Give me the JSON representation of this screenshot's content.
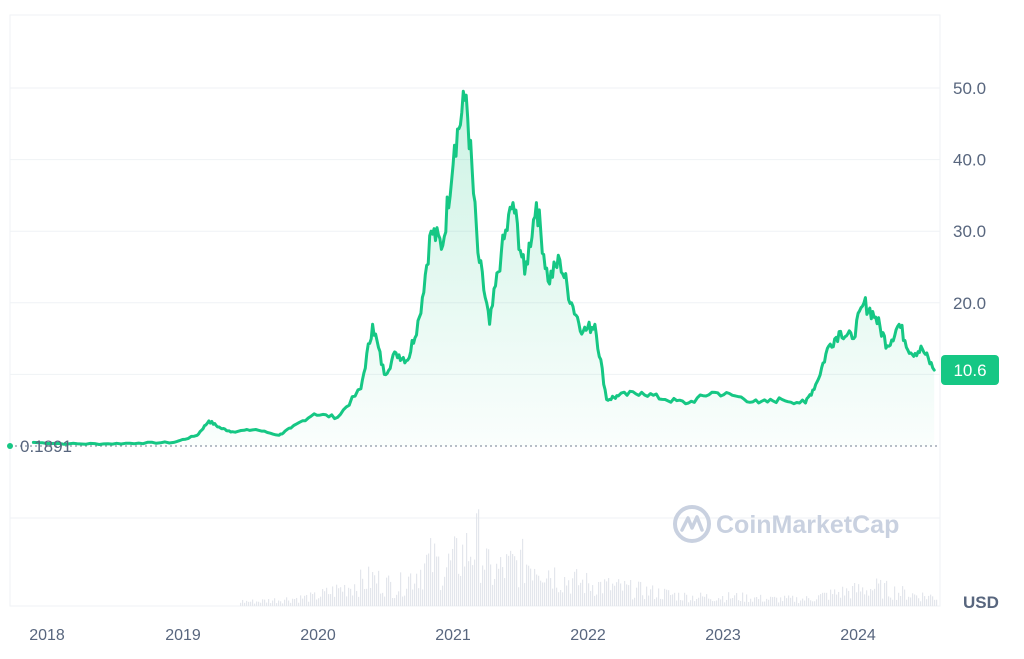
{
  "chart_data": {
    "type": "line",
    "currency_label": "USD",
    "ylim": [
      0,
      58
    ],
    "yticks": [
      "20.0",
      "30.0",
      "40.0",
      "50.0"
    ],
    "xticks": [
      "2018",
      "2019",
      "2020",
      "2021",
      "2022",
      "2023",
      "2024"
    ],
    "start_value_label": "0.1891",
    "start_value": 0.1891,
    "current_value_label": "10.6",
    "current_value": 10.6,
    "watermark": "CoinMarketCap",
    "grid": true,
    "line_color": "#16c784",
    "series": [
      {
        "x": [
          "2018-03",
          "2018-06",
          "2018-09",
          "2018-12",
          "2019-03",
          "2019-05",
          "2019-06",
          "2019-07",
          "2019-08",
          "2019-10",
          "2019-12",
          "2020-01",
          "2020-03",
          "2020-05",
          "2020-07",
          "2020-08",
          "2020-09",
          "2020-10",
          "2020-11",
          "2020-12",
          "2021-01",
          "2021-02",
          "2021-03",
          "2021-04",
          "2021-05",
          "2021-06",
          "2021-07",
          "2021-08",
          "2021-09",
          "2021-10",
          "2021-11",
          "2021-12",
          "2022-01",
          "2022-02",
          "2022-03",
          "2022-04",
          "2022-05",
          "2022-07",
          "2022-09",
          "2022-11",
          "2023-01",
          "2023-03",
          "2023-05",
          "2023-07",
          "2023-09",
          "2023-10",
          "2023-11",
          "2023-12",
          "2024-01",
          "2024-02",
          "2024-03",
          "2024-04",
          "2024-05",
          "2024-06",
          "2024-07",
          "2024-08"
        ],
        "y": [
          0.5,
          0.3,
          0.3,
          0.4,
          0.5,
          1.5,
          3.5,
          2.5,
          2.0,
          2.3,
          1.5,
          2.5,
          4.5,
          4.0,
          8.0,
          17.0,
          10.0,
          13.0,
          12.0,
          18.0,
          30.0,
          28.0,
          42.0,
          49.0,
          27.0,
          17.0,
          27.0,
          34.0,
          24.0,
          34.0,
          23.0,
          26.0,
          20.0,
          16.0,
          17.0,
          6.5,
          7.0,
          7.5,
          6.5,
          6.0,
          7.5,
          7.0,
          6.0,
          6.5,
          6.0,
          9.0,
          14.0,
          16.0,
          15.0,
          20.0,
          18.0,
          14.0,
          17.0,
          13.0,
          13.5,
          10.6
        ]
      }
    ],
    "volume": {
      "x": [
        "2019-06",
        "2019-10",
        "2020-03",
        "2020-08",
        "2020-10",
        "2021-01",
        "2021-02",
        "2021-04",
        "2021-05",
        "2021-06",
        "2021-08",
        "2021-10",
        "2021-12",
        "2022-02",
        "2022-05",
        "2022-08",
        "2022-11",
        "2023-03",
        "2023-06",
        "2023-09",
        "2023-12",
        "2024-03",
        "2024-06",
        "2024-08"
      ],
      "y": [
        1,
        1,
        2,
        6,
        4,
        10,
        8,
        12,
        14,
        7,
        9,
        10,
        6,
        5,
        4,
        3,
        2,
        2,
        1.5,
        1.5,
        3,
        4,
        2.5,
        2
      ]
    }
  }
}
